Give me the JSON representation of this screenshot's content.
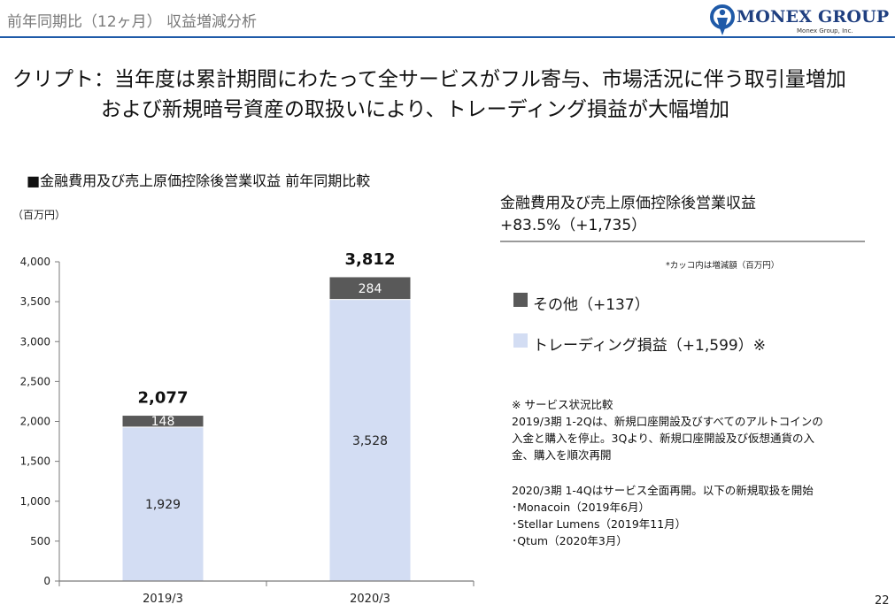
{
  "header": {
    "title": "前年同期比（12ヶ月） 収益増減分析",
    "logo_text": "MONEX GROUP",
    "logo_sub": "Monex Group, Inc."
  },
  "headline": {
    "line1": "クリプト：当年度は累計期間にわたって全サービスがフル寄与、市場活況に伴う取引量増加",
    "line2": "および新規暗号資産の取扱いにより、トレーディング損益が大幅増加"
  },
  "chart_data": {
    "type": "bar",
    "stacked": true,
    "title": "■金融費用及び売上原価控除後営業収益 前年同期比較",
    "ylabel": "（百万円）",
    "categories": [
      "2019/3",
      "2020/3"
    ],
    "series": [
      {
        "name": "トレーディング損益",
        "values": [
          1929,
          3528
        ],
        "color": "#d3ddf3"
      },
      {
        "name": "その他",
        "values": [
          148,
          284
        ],
        "color": "#595959"
      }
    ],
    "totals": [
      2077,
      3812
    ],
    "total_labels": [
      "2,077",
      "3,812"
    ],
    "value_labels": [
      [
        "1,929",
        "3,528"
      ],
      [
        "148",
        "284"
      ]
    ],
    "ylim": [
      0,
      4000
    ],
    "yticks": [
      0,
      500,
      1000,
      1500,
      2000,
      2500,
      3000,
      3500,
      4000
    ],
    "ytick_labels": [
      "0",
      "500",
      "1,000",
      "1,500",
      "2,000",
      "2,500",
      "3,000",
      "3,500",
      "4,000"
    ],
    "grid": false
  },
  "summary": {
    "line1": "金融費用及び売上原価控除後営業収益",
    "line2": "+83.5%（+1,735）",
    "note": "*カッコ内は増減額（百万円）",
    "legend": [
      {
        "label": "その他（+137）",
        "color": "#595959"
      },
      {
        "label": "トレーディング損益（+1,599）※",
        "color": "#d3ddf3"
      }
    ]
  },
  "notes": [
    "※ サービス状況比較",
    "2019/3期 1-2Qは、新規口座開設及びすべてのアルトコインの",
    "入金と購入を停止。3Qより、新規口座開設及び仮想通貨の入",
    "金、購入を順次再開",
    "2020/3期 1-4Qはサービス全面再開。以下の新規取扱を開始",
    "･Monacoin（2019年6月）",
    "･Stellar Lumens（2019年11月）",
    "･Qtum（2020年3月）"
  ],
  "page_number": "22"
}
